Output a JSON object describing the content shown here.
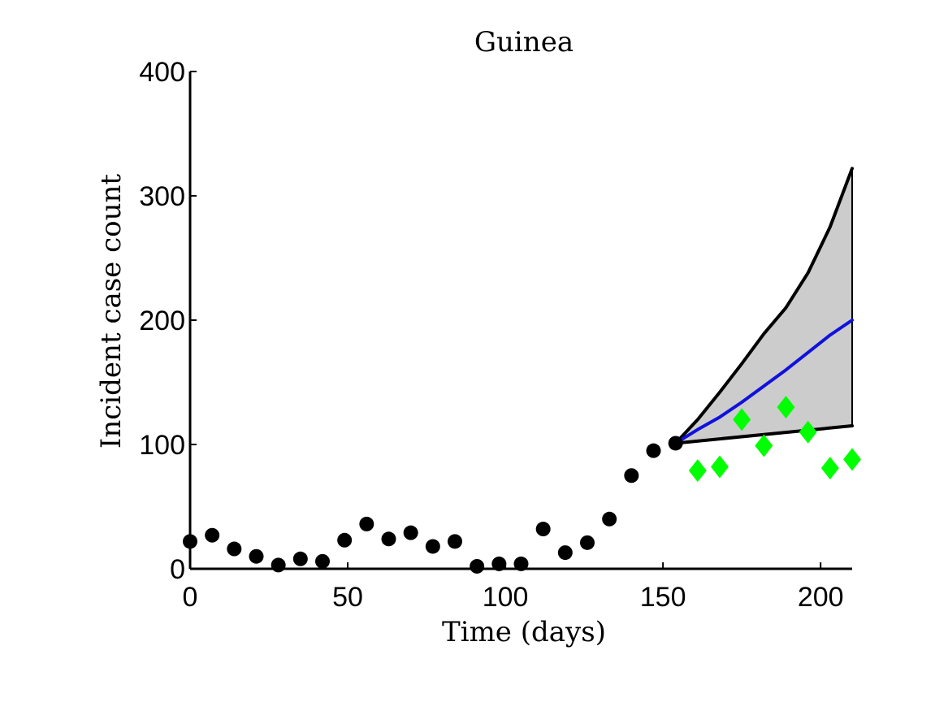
{
  "chart_data": {
    "type": "scatter",
    "title": "Guinea",
    "xlabel": "Time (days)",
    "ylabel": "Incident case count",
    "xlim": [
      0,
      210
    ],
    "ylim": [
      0,
      400
    ],
    "xticks": [
      0,
      50,
      100,
      150,
      200
    ],
    "yticks": [
      0,
      100,
      200,
      300,
      400
    ],
    "grid": false,
    "legend": "none",
    "series": [
      {
        "kind": "observed-points",
        "marker": "circle",
        "color": "#000000",
        "x": [
          0,
          7,
          14,
          21,
          28,
          35,
          42,
          49,
          56,
          63,
          70,
          77,
          84,
          91,
          98,
          105,
          112,
          119,
          126,
          133,
          140,
          147,
          154
        ],
        "y": [
          22,
          27,
          16,
          10,
          3,
          8,
          6,
          23,
          36,
          24,
          29,
          18,
          22,
          2,
          4,
          4,
          32,
          13,
          21,
          40,
          75,
          95,
          101
        ]
      },
      {
        "kind": "validation-points",
        "marker": "diamond",
        "color": "#00ff00",
        "x": [
          161,
          168,
          175,
          182,
          189,
          196,
          203,
          210
        ],
        "y": [
          79,
          82,
          120,
          99,
          130,
          110,
          81,
          88
        ]
      },
      {
        "kind": "forecast-mean",
        "color": "#1111dd",
        "x": [
          154,
          161,
          168,
          175,
          182,
          189,
          196,
          203,
          210
        ],
        "y": [
          101,
          112,
          122,
          134,
          147,
          160,
          174,
          188,
          200
        ]
      },
      {
        "kind": "forecast-upper",
        "color": "#000000",
        "x": [
          154,
          161,
          168,
          175,
          182,
          189,
          196,
          203,
          210
        ],
        "y": [
          101,
          120,
          142,
          165,
          189,
          210,
          238,
          275,
          322
        ]
      },
      {
        "kind": "forecast-lower",
        "color": "#000000",
        "x": [
          154,
          210
        ],
        "y": [
          101,
          115
        ]
      }
    ],
    "band_fill": "#cccccc"
  }
}
